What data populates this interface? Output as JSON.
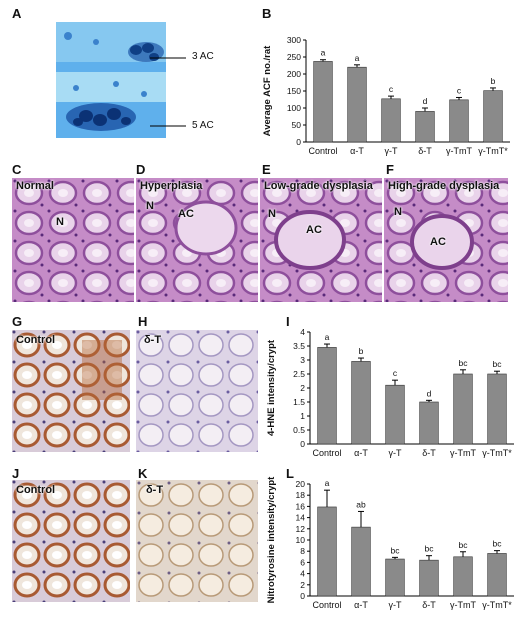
{
  "panels": {
    "A": {
      "letter": "A",
      "annotations": [
        "3 AC",
        "5 AC"
      ]
    },
    "B": {
      "letter": "B"
    },
    "C": {
      "letter": "C",
      "caption": "Normal",
      "markers": [
        "N"
      ]
    },
    "D": {
      "letter": "D",
      "caption": "Hyperplasia",
      "markers": [
        "N",
        "AC"
      ]
    },
    "E": {
      "letter": "E",
      "caption": "Low-grade dysplasia",
      "markers": [
        "N",
        "AC"
      ]
    },
    "F": {
      "letter": "F",
      "caption": "High-grade dysplasia",
      "markers": [
        "N",
        "AC"
      ]
    },
    "G": {
      "letter": "G",
      "caption": "Control"
    },
    "H": {
      "letter": "H",
      "caption": "δ-T"
    },
    "I": {
      "letter": "I"
    },
    "J": {
      "letter": "J",
      "caption": "Control"
    },
    "K": {
      "letter": "K",
      "caption": "δ-T"
    },
    "L": {
      "letter": "L"
    }
  },
  "colors": {
    "bar": "#8a8a8a",
    "bar_edge": "#333333",
    "he_stain": "#c48bc6",
    "ihc_brown": "#b5683a",
    "ihc_blue": "#cfc6de",
    "aberrant_crypt_bg": "#3d8fe0"
  },
  "chart_data": [
    {
      "panel": "B",
      "type": "bar",
      "ylabel": "Average ACF no./rat",
      "categories": [
        "Control",
        "α-T",
        "γ-T",
        "δ-T",
        "γ-TmT",
        "γ-TmT*"
      ],
      "values": [
        237,
        220,
        127,
        90,
        124,
        151
      ],
      "errors": [
        5,
        7,
        8,
        10,
        7,
        8
      ],
      "significance": [
        "a",
        "a",
        "c",
        "d",
        "c",
        "b"
      ],
      "ylim": [
        0,
        300
      ],
      "yticks": [
        0,
        50,
        100,
        150,
        200,
        250,
        300
      ]
    },
    {
      "panel": "I",
      "type": "bar",
      "ylabel": "4-HNE intensity/crypt",
      "categories": [
        "Control",
        "α-T",
        "γ-T",
        "δ-T",
        "γ-TmT",
        "γ-TmT*"
      ],
      "values": [
        3.45,
        2.95,
        2.1,
        1.5,
        2.5,
        2.5
      ],
      "errors": [
        0.12,
        0.12,
        0.18,
        0.06,
        0.15,
        0.1
      ],
      "significance": [
        "a",
        "b",
        "c",
        "d",
        "bc",
        "bc"
      ],
      "ylim": [
        0,
        4
      ],
      "yticks": [
        "0",
        "0.5",
        "1",
        "1.5",
        "2",
        "2.5",
        "3",
        "3.5",
        "4"
      ]
    },
    {
      "panel": "L",
      "type": "bar",
      "ylabel": "Nitrotyrosine intensity/crypt",
      "categories": [
        "Control",
        "α-T",
        "γ-T",
        "δ-T",
        "γ-TmT",
        "γ-TmT*"
      ],
      "values": [
        15.9,
        12.3,
        6.6,
        6.4,
        7.0,
        7.6
      ],
      "errors": [
        3.0,
        2.8,
        0.3,
        0.8,
        0.9,
        0.5
      ],
      "significance": [
        "a",
        "ab",
        "bc",
        "bc",
        "bc",
        "bc"
      ],
      "ylim": [
        0,
        20
      ],
      "yticks": [
        0,
        2,
        4,
        6,
        8,
        10,
        12,
        14,
        16,
        18,
        20
      ]
    }
  ]
}
